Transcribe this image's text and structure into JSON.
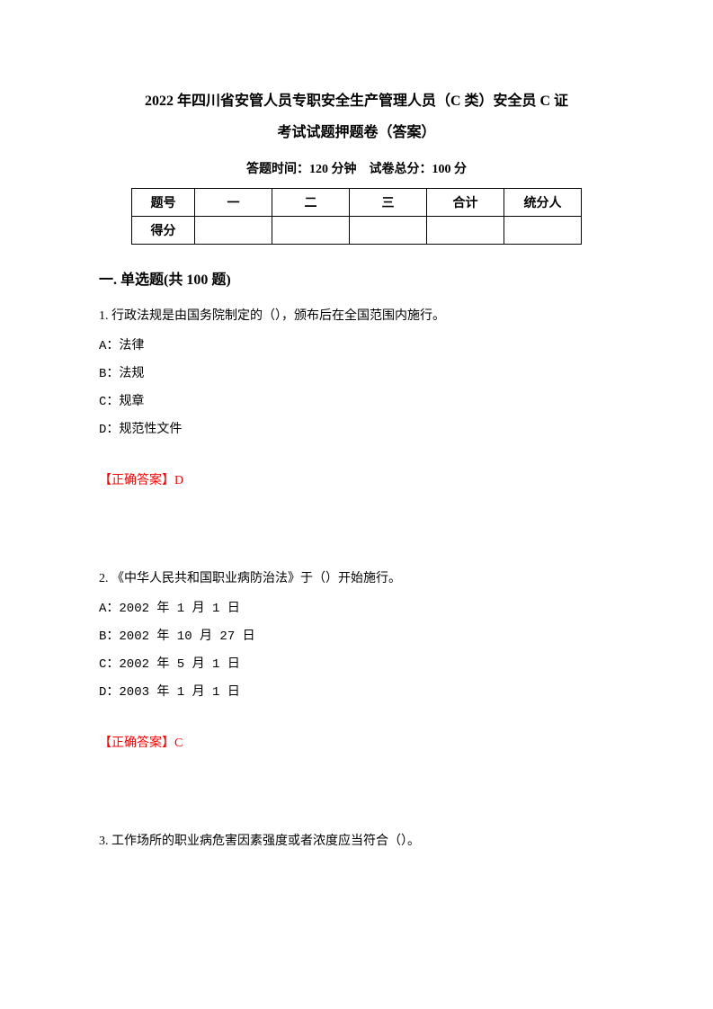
{
  "title_line1": "2022 年四川省安管人员专职安全生产管理人员（C 类）安全员 C 证",
  "title_line2": "考试试题押题卷（答案）",
  "exam_info": "答题时间：120 分钟 试卷总分：100 分",
  "score_table": {
    "header_row": [
      "题号",
      "一",
      "二",
      "三",
      "合计",
      "统分人"
    ],
    "score_row_label": "得分"
  },
  "section_title": "一. 单选题(共 100 题)",
  "questions": [
    {
      "number": "1.",
      "text": "行政法规是由国务院制定的（），颁布后在全国范围内施行。",
      "options": [
        "A：法律",
        "B：法规",
        "C：规章",
        "D：规范性文件"
      ],
      "answer_label": "【正确答案】",
      "answer": "D"
    },
    {
      "number": "2.",
      "text": "《中华人民共和国职业病防治法》于（）开始施行。",
      "options": [
        "A：2002 年 1 月 1 日",
        "B：2002 年 10 月 27 日",
        "C：2002 年 5 月 1 日",
        "D：2003 年 1 月 1 日"
      ],
      "answer_label": "【正确答案】",
      "answer": "C"
    },
    {
      "number": "3.",
      "text": "工作场所的职业病危害因素强度或者浓度应当符合（）。",
      "options": [],
      "answer_label": "",
      "answer": ""
    }
  ],
  "colors": {
    "text": "#000000",
    "answer": "#ff0000",
    "background": "#ffffff",
    "border": "#000000"
  }
}
